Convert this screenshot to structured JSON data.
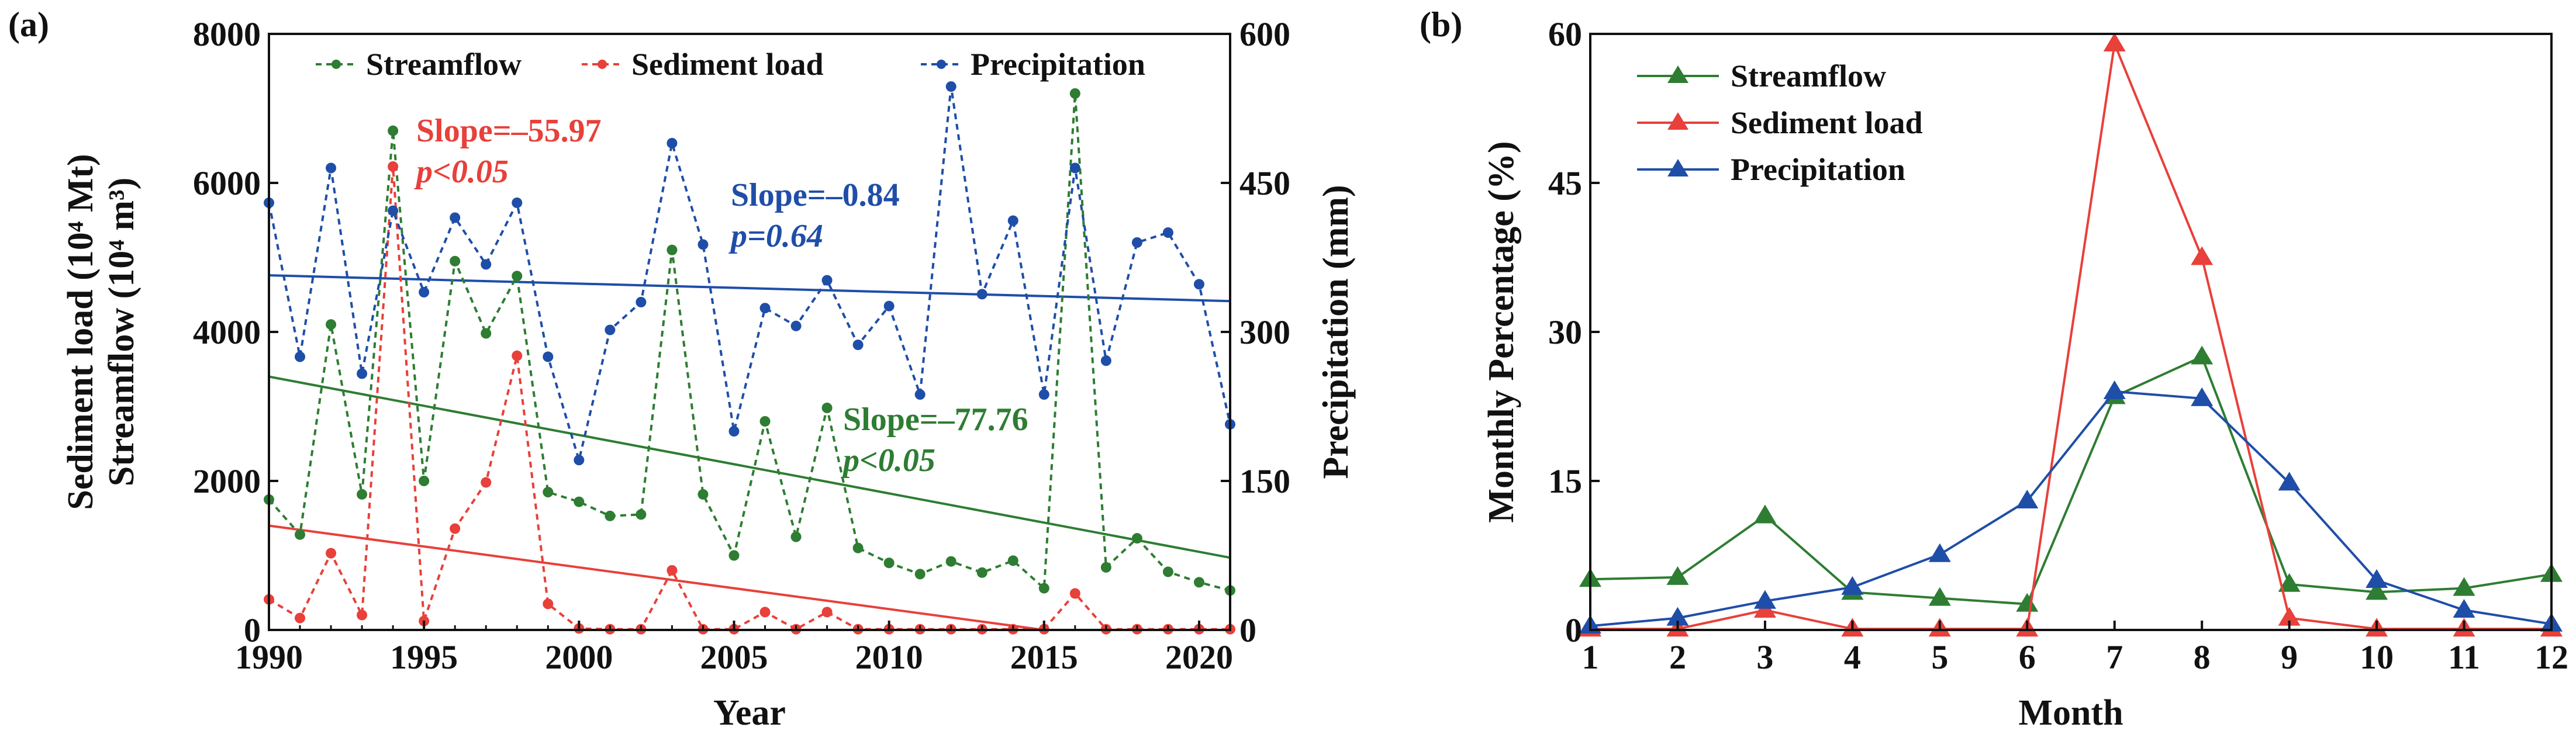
{
  "colors": {
    "streamflow": "#2e7d32",
    "sediment": "#e8403a",
    "precip": "#1f4ea8",
    "axis": "#111111"
  },
  "chart_data": [
    {
      "panel_label": "(a)",
      "type": "line",
      "xlabel": "Year",
      "ylabel_left_top": "Sediment load (10⁴ Mt)",
      "ylabel_left_bottom": "Streamflow (10⁴ m³)",
      "ylabel_right": "Precipitation (mm)",
      "xlim": [
        1990,
        2021
      ],
      "ylim_left": [
        0,
        8000
      ],
      "ylim_right": [
        0,
        600
      ],
      "x_ticks": [
        "1990",
        "1995",
        "2000",
        "2005",
        "2010",
        "2015",
        "2020"
      ],
      "y_left_ticks": [
        "0",
        "2000",
        "4000",
        "6000",
        "8000"
      ],
      "y_right_ticks": [
        "0",
        "150",
        "300",
        "450",
        "600"
      ],
      "x": [
        1990,
        1991,
        1992,
        1993,
        1994,
        1995,
        1996,
        1997,
        1998,
        1999,
        2000,
        2001,
        2002,
        2003,
        2004,
        2005,
        2006,
        2007,
        2008,
        2009,
        2010,
        2011,
        2012,
        2013,
        2014,
        2015,
        2016,
        2017,
        2018,
        2019,
        2020,
        2021
      ],
      "series": [
        {
          "name": "Streamflow",
          "axis": "left",
          "color_key": "streamflow",
          "values": [
            1750,
            1280,
            4100,
            1820,
            6700,
            2000,
            4950,
            3980,
            4750,
            1850,
            1720,
            1530,
            1550,
            5100,
            1820,
            1000,
            2800,
            1250,
            2980,
            1100,
            900,
            750,
            920,
            770,
            930,
            560,
            7200,
            840,
            1230,
            780,
            640,
            530
          ]
        },
        {
          "name": "Sediment load",
          "axis": "left",
          "color_key": "sediment",
          "values": [
            410,
            160,
            1030,
            200,
            6220,
            120,
            1360,
            1980,
            3680,
            350,
            20,
            10,
            10,
            800,
            10,
            10,
            240,
            10,
            240,
            10,
            10,
            10,
            10,
            10,
            10,
            10,
            490,
            10,
            10,
            10,
            10,
            10
          ]
        },
        {
          "name": "Precipitation",
          "axis": "right",
          "color_key": "precip",
          "values": [
            430,
            275,
            465,
            258,
            422,
            340,
            415,
            368,
            430,
            275,
            171,
            302,
            330,
            490,
            388,
            200,
            324,
            306,
            352,
            287,
            326,
            237,
            547,
            338,
            412,
            237,
            465,
            271,
            390,
            400,
            348,
            207
          ]
        }
      ],
      "trendlines": [
        {
          "series": "Streamflow",
          "axis": "left",
          "x": [
            1990,
            2021
          ],
          "y": [
            3400,
            970
          ],
          "color_key": "streamflow"
        },
        {
          "series": "Sediment load",
          "axis": "left",
          "x": [
            1990,
            2015
          ],
          "y": [
            1400,
            0
          ],
          "color_key": "sediment"
        },
        {
          "series": "Precipitation",
          "axis": "right",
          "x": [
            1990,
            2021
          ],
          "y": [
            357,
            331
          ],
          "color_key": "precip"
        }
      ],
      "annotations": [
        {
          "series": "Sediment load",
          "slope": "Slope=–55.97",
          "p": "p<0.05",
          "color_key": "sediment"
        },
        {
          "series": "Precipitation",
          "slope": "Slope=–0.84",
          "p": "p=0.64",
          "color_key": "precip"
        },
        {
          "series": "Streamflow",
          "slope": "Slope=–77.76",
          "p": "p<0.05",
          "color_key": "streamflow"
        }
      ],
      "legend": [
        "Streamflow",
        "Sediment load",
        "Precipitation"
      ],
      "legend_position": "top"
    },
    {
      "panel_label": "(b)",
      "type": "line",
      "xlabel": "Month",
      "ylabel": "Monthly Percentage (%)",
      "xlim": [
        1,
        12
      ],
      "ylim": [
        0,
        60
      ],
      "x_ticks": [
        "1",
        "2",
        "3",
        "4",
        "5",
        "6",
        "7",
        "8",
        "9",
        "10",
        "11",
        "12"
      ],
      "y_ticks": [
        "0",
        "15",
        "30",
        "45",
        "60"
      ],
      "x": [
        1,
        2,
        3,
        4,
        5,
        6,
        7,
        8,
        9,
        10,
        11,
        12
      ],
      "series": [
        {
          "name": "Streamflow",
          "color_key": "streamflow",
          "values": [
            5.1,
            5.3,
            11.5,
            3.8,
            3.2,
            2.6,
            23.5,
            27.5,
            4.6,
            3.8,
            4.2,
            5.6
          ]
        },
        {
          "name": "Sediment load",
          "color_key": "sediment",
          "values": [
            0.1,
            0.1,
            2.0,
            0.1,
            0.1,
            0.1,
            59.0,
            37.5,
            1.2,
            0.1,
            0.1,
            0.1
          ]
        },
        {
          "name": "Precipitation",
          "color_key": "precip",
          "values": [
            0.4,
            1.2,
            2.9,
            4.3,
            7.6,
            13.0,
            24.0,
            23.3,
            14.8,
            5.0,
            2.0,
            0.6
          ]
        }
      ],
      "legend": [
        "Streamflow",
        "Sediment load",
        "Precipitation"
      ],
      "legend_position": "top-left"
    }
  ]
}
